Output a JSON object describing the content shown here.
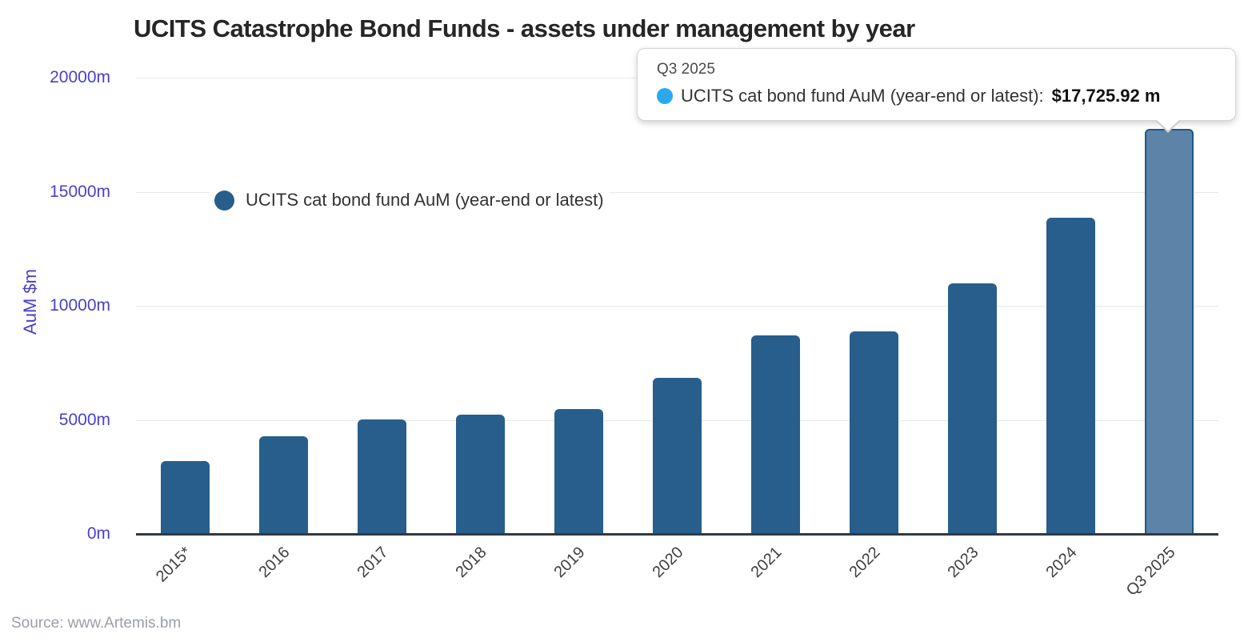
{
  "chart_data": {
    "type": "bar",
    "title": "UCITS Catastrophe Bond Funds - assets under management by year",
    "xlabel": "",
    "ylabel": "AuM $m",
    "categories": [
      "2015*",
      "2016",
      "2017",
      "2018",
      "2019",
      "2020",
      "2021",
      "2022",
      "2023",
      "2024",
      "Q3 2025"
    ],
    "series": [
      {
        "name": "UCITS cat bond fund AuM (year-end or latest)",
        "values": [
          3150,
          4250,
          5000,
          5200,
          5450,
          6800,
          8670,
          8840,
          10950,
          13830,
          17725.92
        ]
      }
    ],
    "ylim": [
      0,
      20000
    ],
    "yticks": [
      {
        "value": 0,
        "label": "0m"
      },
      {
        "value": 5000,
        "label": "5000m"
      },
      {
        "value": 10000,
        "label": "10000m"
      },
      {
        "value": 15000,
        "label": "15000m"
      },
      {
        "value": 20000,
        "label": "20000m"
      }
    ],
    "grid": true,
    "legend_position": "inside-left",
    "highlighted_category": "Q3 2025",
    "colors": {
      "bar": "#275e8c",
      "bar_highlight_fill": "#5d83a8",
      "bar_highlight_border": "#1d5989",
      "axis_label_text": "#4a41c8",
      "gridline": "#e8e8e8",
      "axis_line": "#333940"
    }
  },
  "legend": {
    "label": "UCITS cat bond fund AuM (year-end or latest)",
    "marker_color": "#275e8c"
  },
  "tooltip": {
    "title": "Q3 2025",
    "series_label": "UCITS cat bond fund AuM (year-end or latest):",
    "value": "$17,725.92 m",
    "dot_color": "#2aa9f0"
  },
  "footer": {
    "source": "Source: www.Artemis.bm"
  }
}
